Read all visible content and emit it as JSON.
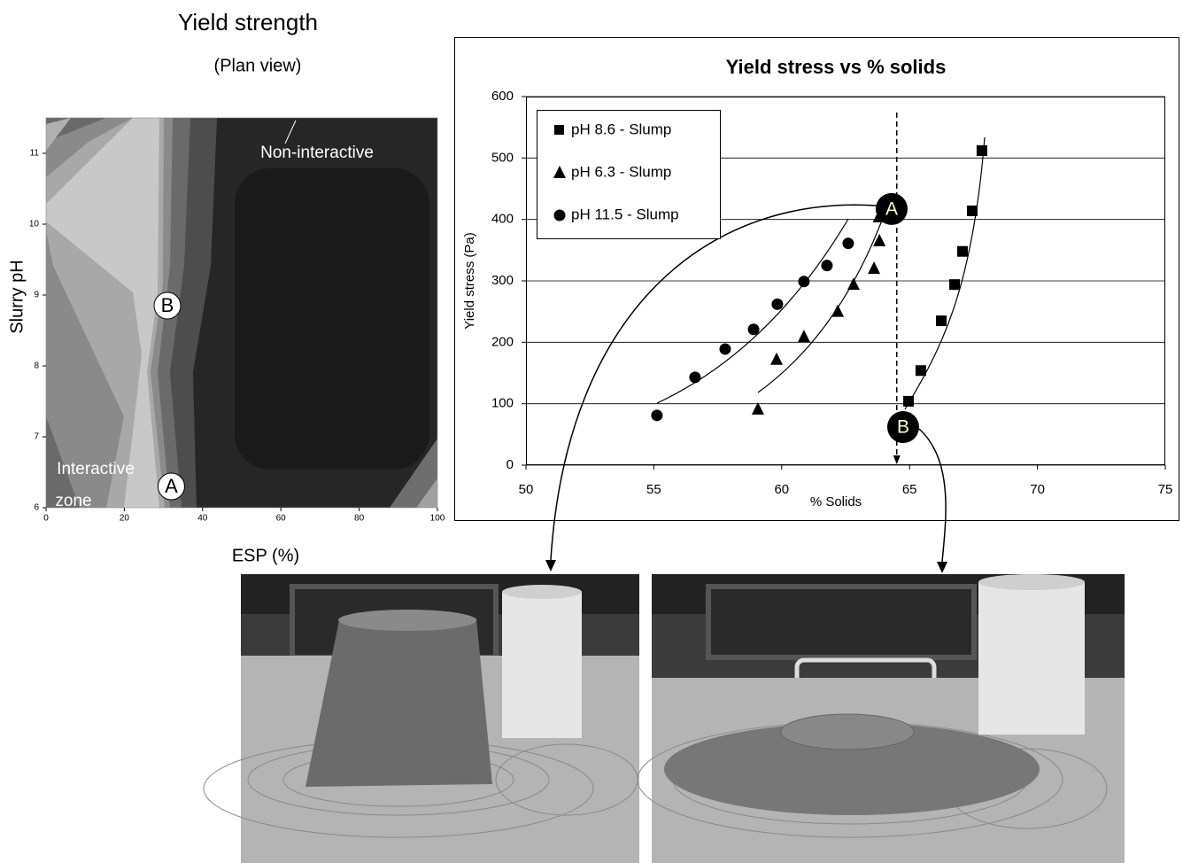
{
  "chart_data": [
    {
      "type": "contour",
      "title": "Yield strength",
      "subtitle": "(Plan view)",
      "x_label": "ESP (%)",
      "y_label": "Slurry pH",
      "xlim": [
        0,
        100
      ],
      "xticks": [
        0,
        20,
        40,
        60,
        80,
        100
      ],
      "ylim": [
        6,
        11.5
      ],
      "yticks": [
        6,
        7,
        8,
        9,
        10,
        11
      ],
      "annotations": [
        "Non-interactive",
        "Interactive",
        "zone"
      ],
      "points": [
        {
          "label": "A",
          "x": 32,
          "y": 6.3
        },
        {
          "label": "B",
          "x": 31,
          "y": 8.85
        }
      ]
    },
    {
      "type": "scatter",
      "title": "Yield stress vs % solids",
      "x_label": "% Solids",
      "y_label": "Yield stress (Pa)",
      "xlim": [
        50,
        75
      ],
      "xticks": [
        50,
        55,
        60,
        65,
        70,
        75
      ],
      "ylim": [
        0,
        600
      ],
      "yticks": [
        0,
        100,
        200,
        300,
        400,
        500,
        600
      ],
      "grid": true,
      "legend": "upper left",
      "series": [
        {
          "name": "pH 8.6 - Slump",
          "color": "#000000",
          "marker": "square",
          "x": [
            64.96,
            65.44,
            66.24,
            66.76,
            67.07,
            67.45,
            67.83
          ],
          "values": [
            104,
            154,
            235,
            294,
            348,
            414,
            512
          ]
        },
        {
          "name": "pH 6.3 - Slump",
          "color": "#000000",
          "marker": "triangle",
          "x": [
            59.07,
            59.8,
            60.87,
            62.19,
            62.81,
            63.61,
            63.82,
            63.8
          ],
          "values": [
            91,
            172,
            209,
            250,
            294,
            320,
            365,
            404
          ]
        },
        {
          "name": "pH 11.5 - Slump",
          "color": "#000000",
          "marker": "circle",
          "x": [
            55.12,
            56.61,
            57.79,
            58.9,
            59.83,
            60.87,
            61.77,
            62.6
          ],
          "values": [
            81,
            143,
            189,
            221,
            262,
            299,
            325,
            361
          ]
        }
      ],
      "reference_x": 64.5,
      "points": [
        {
          "label": "A",
          "x": 64.3,
          "y": 417
        },
        {
          "label": "B",
          "x": 64.75,
          "y": 62
        }
      ]
    }
  ]
}
